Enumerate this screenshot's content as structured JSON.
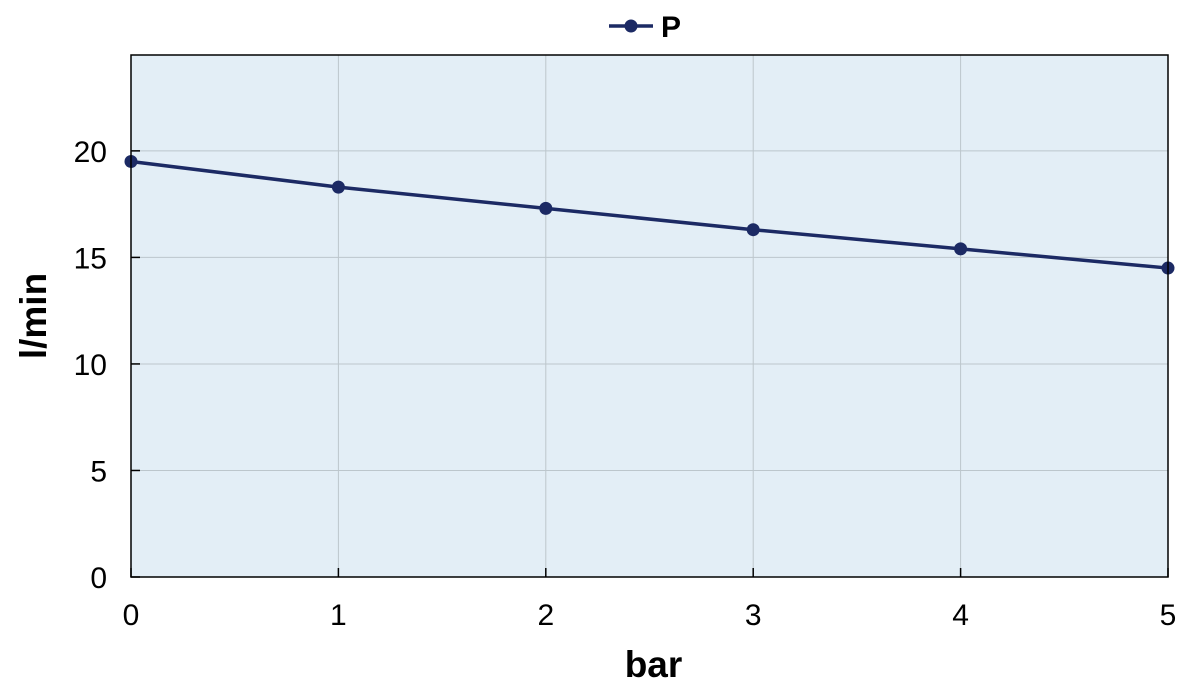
{
  "chart_data": {
    "type": "line",
    "title": "",
    "xlabel": "bar",
    "ylabel": "l/min",
    "xlim": [
      0,
      5
    ],
    "ylim": [
      0,
      24.5
    ],
    "x_ticks": [
      "0",
      "1",
      "2",
      "3",
      "4",
      "5"
    ],
    "y_ticks": [
      "0",
      "5",
      "10",
      "15",
      "20"
    ],
    "grid": true,
    "legend": {
      "placement": "top-center",
      "entries": [
        "P"
      ]
    },
    "series": [
      {
        "name": "P",
        "color": "#1c2a64",
        "x": [
          0,
          1,
          2,
          3,
          4,
          5
        ],
        "values": [
          19.5,
          18.3,
          17.3,
          16.3,
          15.4,
          14.5
        ]
      }
    ],
    "colors": {
      "plot_background": "#e3eef6",
      "grid": "#bcc6cc",
      "axis": "#000000"
    }
  }
}
